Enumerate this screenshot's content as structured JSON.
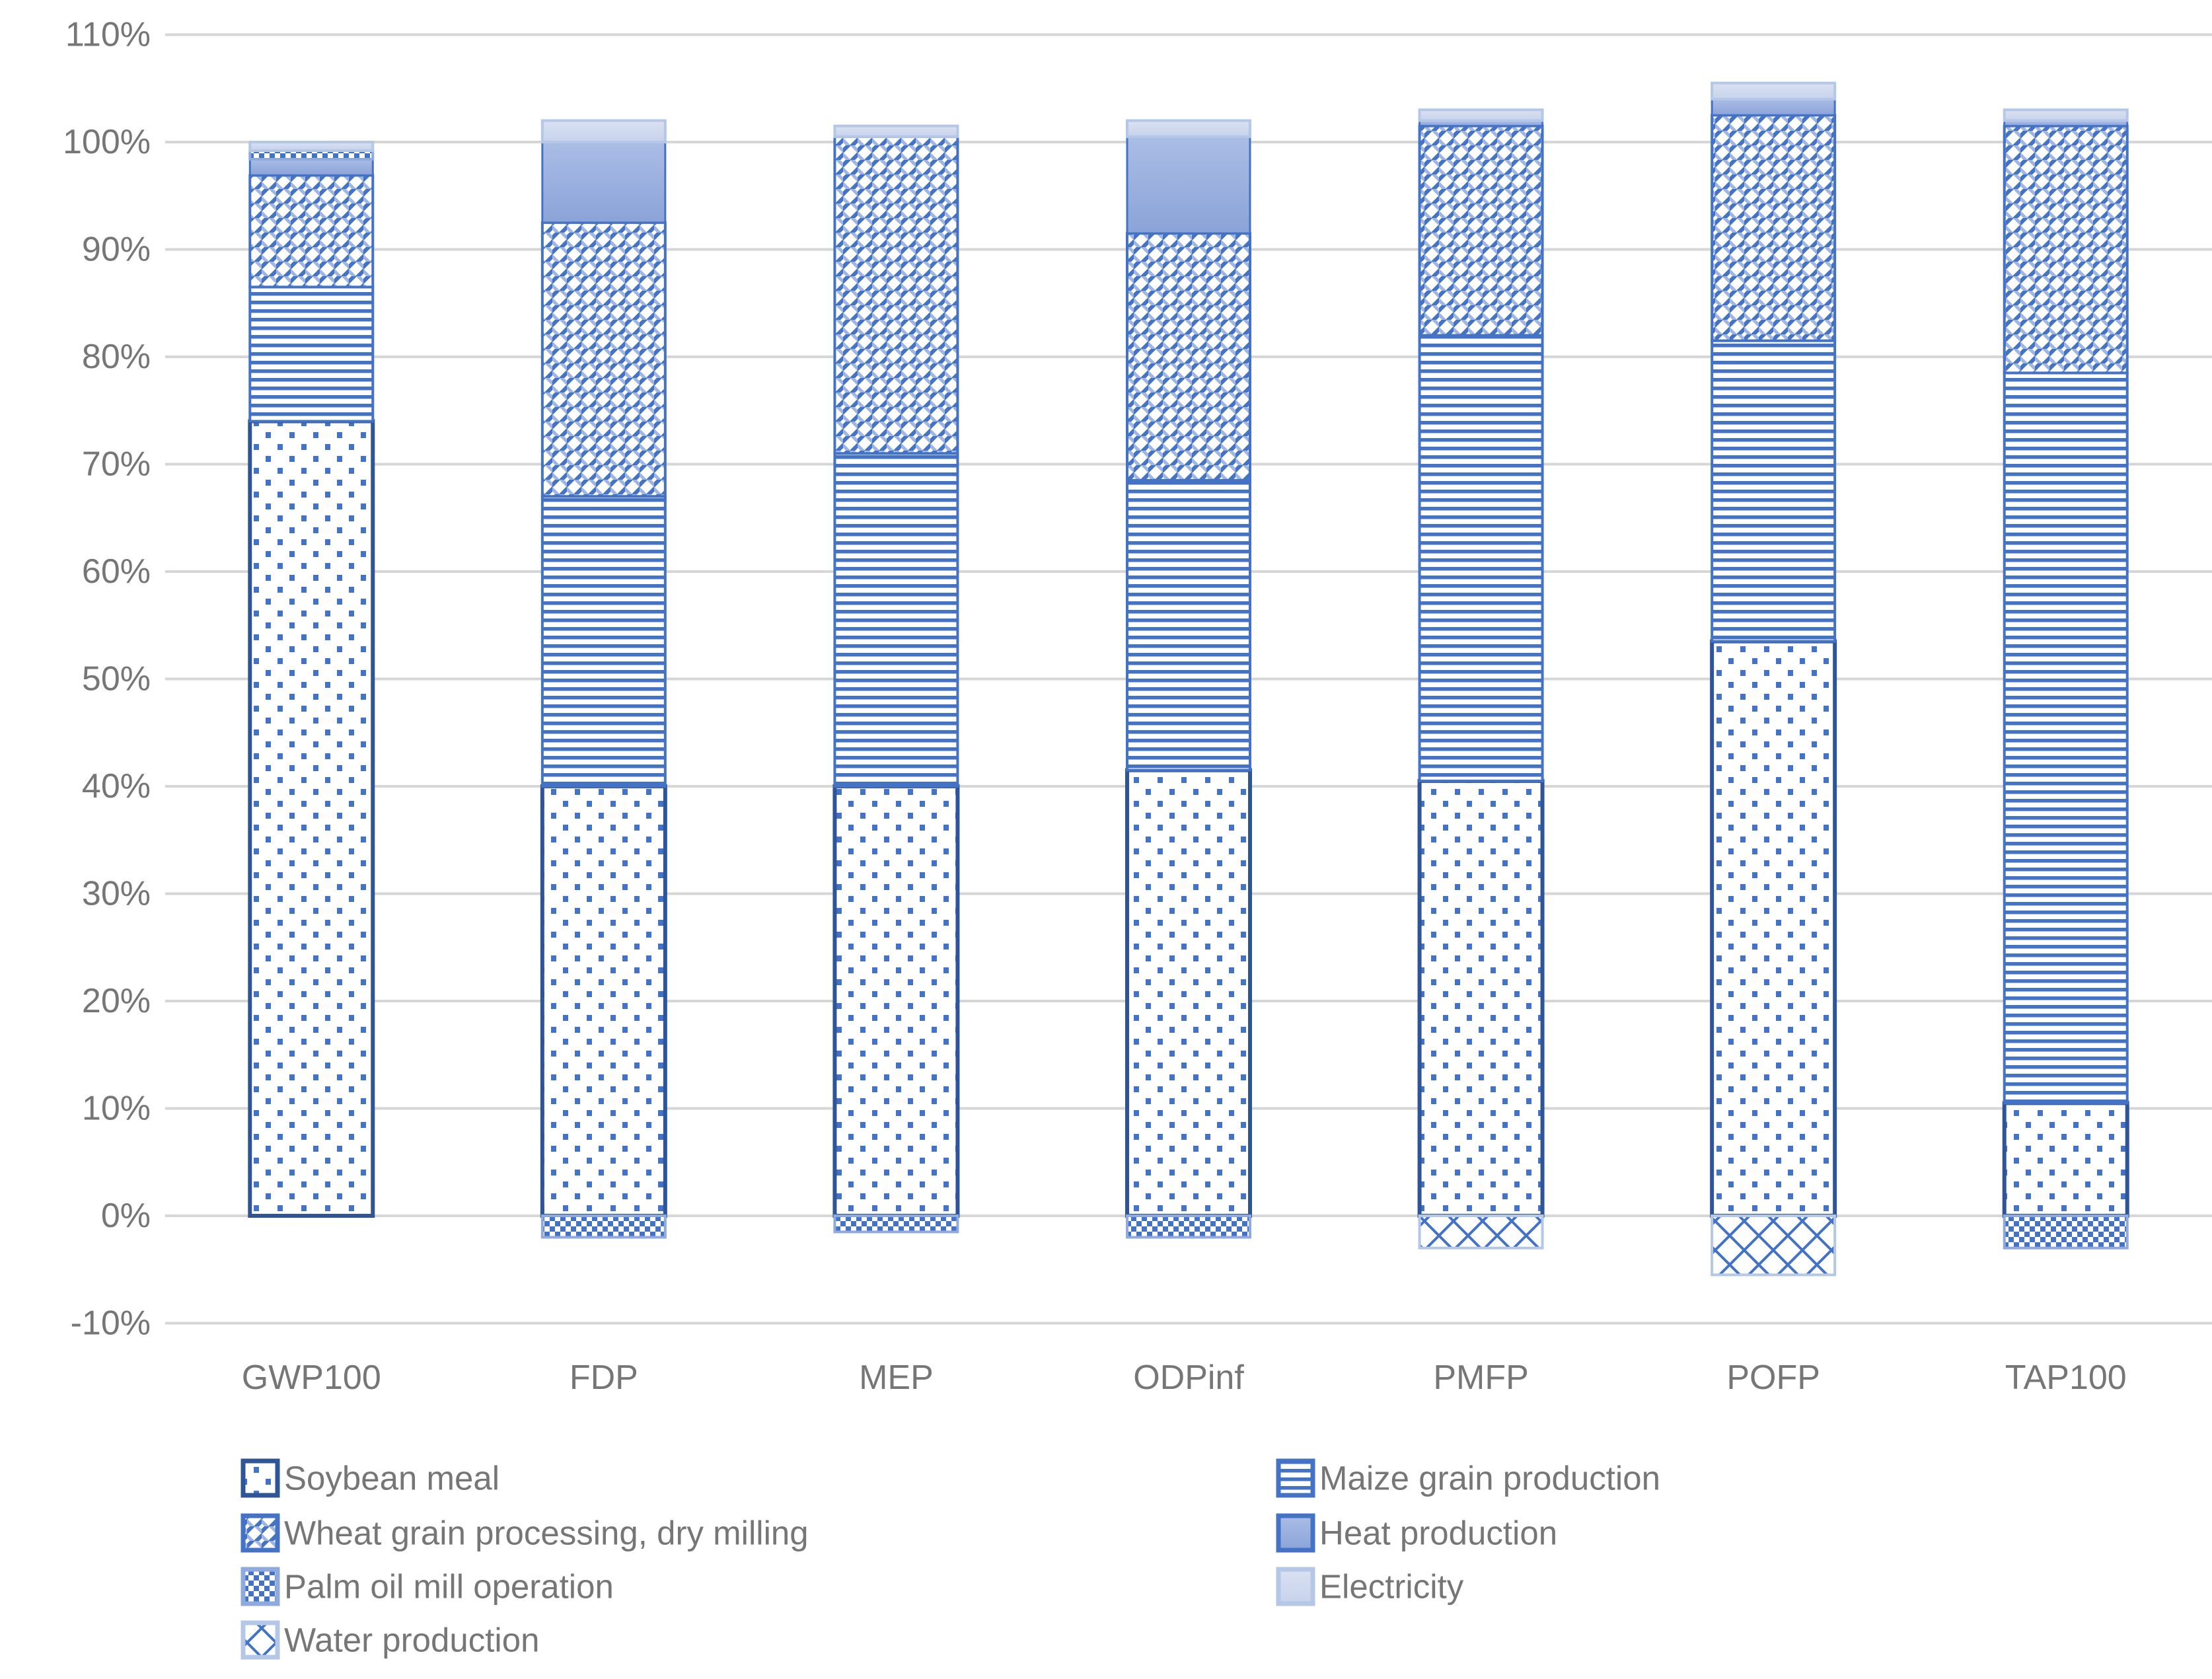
{
  "chart_data": {
    "type": "bar",
    "stacked": true,
    "title": "",
    "xlabel": "",
    "ylabel": "",
    "categories": [
      "GWP100",
      "FDP",
      "MEP",
      "ODPinf",
      "PMFP",
      "POFP",
      "TAP100"
    ],
    "y_axis": {
      "min": -10,
      "max": 110,
      "step": 10,
      "tick_labels": [
        "110%",
        "100%",
        "90%",
        "80%",
        "70%",
        "60%",
        "50%",
        "40%",
        "30%",
        "20%",
        "10%",
        "0%",
        "-10%"
      ],
      "grid": true
    },
    "series": [
      {
        "name": "Soybean meal",
        "pattern": "dots",
        "values": [
          74,
          40,
          40,
          41.5,
          40.5,
          53.5,
          10.5
        ]
      },
      {
        "name": "Maize grain production",
        "pattern": "hlines",
        "values": [
          12.5,
          27,
          31,
          27,
          41.5,
          28,
          68
        ]
      },
      {
        "name": "Wheat grain processing, dry milling",
        "pattern": "weave",
        "values": [
          10.4,
          25.5,
          29.5,
          23,
          19.5,
          21,
          23
        ]
      },
      {
        "name": "Heat production",
        "pattern": "solidMedium",
        "values": [
          1.5,
          7.5,
          0,
          9,
          0.5,
          1.5,
          0.5
        ]
      },
      {
        "name": "Palm oil mill operation",
        "pattern": "check",
        "values": [
          0.8,
          -2,
          -1.5,
          -2,
          0,
          0,
          -3
        ]
      },
      {
        "name": "Electricity",
        "pattern": "solidLight",
        "values": [
          0.8,
          2,
          1,
          1.5,
          1,
          1.5,
          1
        ]
      },
      {
        "name": "Water production",
        "pattern": "diag",
        "values": [
          0,
          0,
          0,
          0,
          -3,
          -5.5,
          0
        ]
      }
    ],
    "legend": {
      "position": "bottom",
      "rows": [
        {
          "left": "Soybean meal",
          "right": "Maize grain production"
        },
        {
          "left": "Wheat grain processing, dry milling",
          "right": "Heat production"
        },
        {
          "left": "Palm oil mill operation",
          "right": "Electricity"
        },
        {
          "left": "Water production",
          "right": ""
        }
      ]
    },
    "colors": {
      "primary_blue": "#4472C4",
      "dark_navy": "#2F5597",
      "heat_fill_top": "#AABDE6",
      "heat_fill_bottom": "#8BA3D8",
      "electricity_fill_top": "#DAE1F2",
      "electricity_fill_bottom": "#C7D2EB",
      "palm_border": "#8FAADC",
      "pale_border": "#B4C7E7",
      "gridline": "#D6D6D6",
      "axis_text": "#767676",
      "background": "#FFFFFF",
      "weave_light": "#9FB6E4"
    }
  }
}
